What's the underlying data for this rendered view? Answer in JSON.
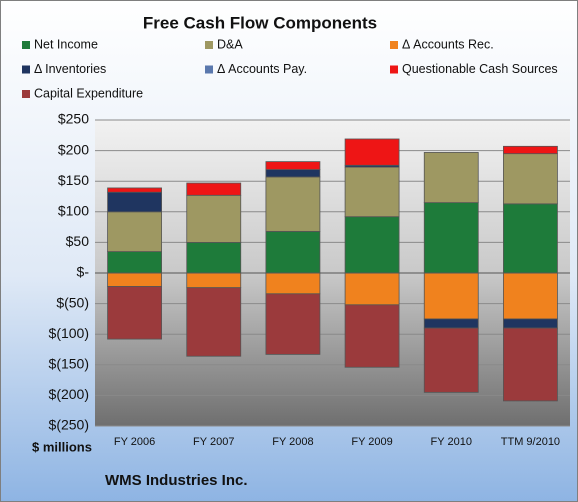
{
  "chart_data": {
    "type": "stacked_bar",
    "title": "Free Cash Flow Components",
    "categories": [
      "FY 2006",
      "FY 2007",
      "FY 2008",
      "FY 2009",
      "FY 2010",
      "TTM 9/2010"
    ],
    "series": [
      {
        "name": "Net Income",
        "color": "#1e7b3a",
        "values": [
          35,
          50,
          68,
          92,
          115,
          113
        ]
      },
      {
        "name": "D&A",
        "color": "#9e9862",
        "values": [
          65,
          77,
          89,
          81,
          82,
          82
        ]
      },
      {
        "name": "Δ Accounts Rec.",
        "color": "#f0821e",
        "values": [
          -22,
          -24,
          -34,
          -52,
          -75,
          -75
        ]
      },
      {
        "name": "Δ Inventories",
        "color": "#1f3560",
        "values": [
          32,
          0,
          12,
          3,
          -15,
          -15
        ]
      },
      {
        "name": "Δ Accounts Pay.",
        "color": "#5a78ad",
        "values": [
          0,
          0,
          0,
          0,
          0,
          0
        ]
      },
      {
        "name": "Questionable Cash Sources",
        "color": "#ee1515",
        "values": [
          7,
          20,
          13,
          43,
          0,
          12
        ]
      },
      {
        "name": "Capital Expenditure",
        "color": "#9b3a3c",
        "values": [
          -86,
          -112,
          -99,
          -102,
          -105,
          -119
        ]
      }
    ],
    "ylim": [
      -250,
      250
    ],
    "yticks": [
      {
        "value": -250,
        "label": "$(250)"
      },
      {
        "value": -200,
        "label": "$(200)"
      },
      {
        "value": -150,
        "label": "$(150)"
      },
      {
        "value": -100,
        "label": "$(100)"
      },
      {
        "value": -50,
        "label": "$(50)"
      },
      {
        "value": 0,
        "label": "$-"
      },
      {
        "value": 50,
        "label": "$50"
      },
      {
        "value": 100,
        "label": "$100"
      },
      {
        "value": 150,
        "label": "$150"
      },
      {
        "value": 200,
        "label": "$200"
      },
      {
        "value": 250,
        "label": "$250"
      }
    ],
    "y_label": "$ millions",
    "footer": "WMS Industries Inc.",
    "grid": true
  }
}
